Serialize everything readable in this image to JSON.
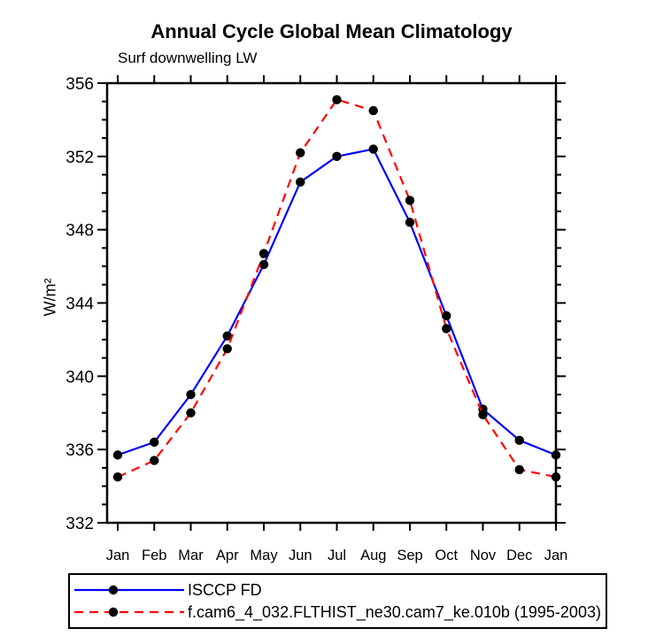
{
  "title": "Annual Cycle Global Mean Climatology",
  "subtitle": "Surf downwelling LW",
  "chart_data": {
    "type": "line",
    "categories": [
      "Jan",
      "Feb",
      "Mar",
      "Apr",
      "May",
      "Jun",
      "Jul",
      "Aug",
      "Sep",
      "Oct",
      "Nov",
      "Dec",
      "Jan"
    ],
    "series": [
      {
        "name": "ISCCP FD",
        "color": "#0000ff",
        "line_style": "solid",
        "marker": "filled-circle",
        "marker_color": "#000000",
        "values": [
          335.7,
          336.4,
          339.0,
          342.2,
          346.1,
          350.6,
          352.0,
          352.4,
          348.4,
          343.3,
          338.2,
          336.5,
          335.7
        ]
      },
      {
        "name": "f.cam6_4_032.FLTHIST_ne30.cam7_ke.010b (1995-2003)",
        "color": "#ff0000",
        "line_style": "dashed",
        "marker": "filled-circle",
        "marker_color": "#000000",
        "values": [
          334.5,
          335.4,
          338.0,
          341.5,
          346.7,
          352.2,
          355.1,
          354.5,
          349.6,
          342.6,
          337.9,
          334.9,
          334.5
        ]
      }
    ],
    "xlabel": "",
    "ylabel": "W/m²",
    "ylim": [
      332,
      356
    ],
    "yticks": [
      332,
      336,
      340,
      344,
      348,
      352,
      356
    ],
    "ytick_minor_step": 1,
    "grid": false,
    "frame": true,
    "ticks_outward": true,
    "legend_position": "bottom",
    "axis_color": "#000000"
  }
}
